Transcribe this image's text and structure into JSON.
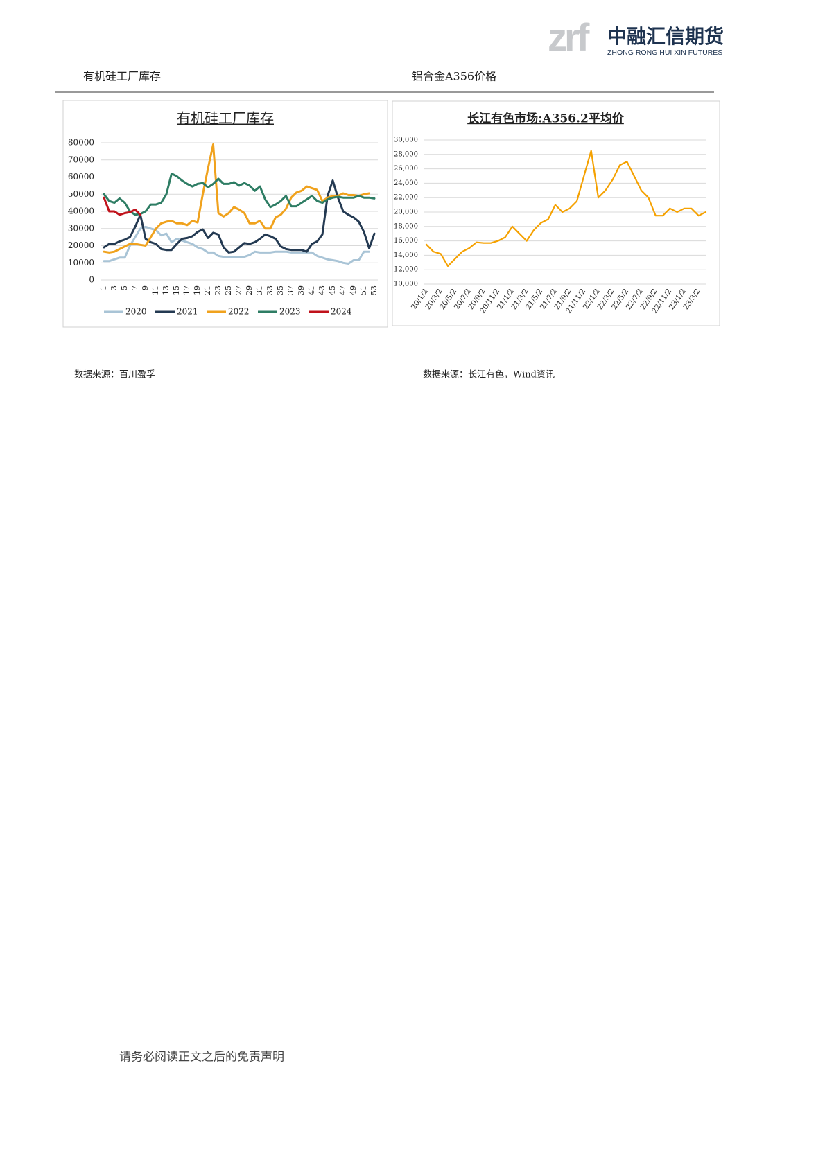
{
  "header": {
    "logo_mark": "zrf",
    "company": "中融汇信期货",
    "company_en": "ZHONG RONG HUI XIN FUTURES"
  },
  "sections": [
    {
      "title": "有机硅工厂库存",
      "source": "数据来源：百川盈孚"
    },
    {
      "title": "铝合金A356价格",
      "source": "数据来源：长江有色，Wind资讯"
    }
  ],
  "chart_data": [
    {
      "type": "line",
      "title": "有机硅工厂库存",
      "categories": [
        "1",
        null,
        "3",
        null,
        "5",
        null,
        "7",
        null,
        "9",
        null,
        "11",
        null,
        "13",
        null,
        "15",
        null,
        "17",
        null,
        "19",
        null,
        "21",
        null,
        "23",
        null,
        "25",
        null,
        "27",
        null,
        "29",
        null,
        "31",
        null,
        "33",
        null,
        "35",
        null,
        "37",
        null,
        "39",
        null,
        "41",
        null,
        "43",
        null,
        "45",
        null,
        "47",
        null,
        "49",
        null,
        "51",
        null,
        "53"
      ],
      "ylim": [
        0,
        80000
      ],
      "yticks": [
        0,
        10000,
        20000,
        30000,
        40000,
        50000,
        60000,
        70000,
        80000
      ],
      "grid": true,
      "legend": "bottom",
      "series": [
        {
          "name": "2020",
          "color": "#a9c4d6",
          "values": [
            11000,
            11000,
            12000,
            13000,
            13000,
            20000,
            25000,
            30000,
            31000,
            30000,
            29000,
            26000,
            27000,
            22000,
            24000,
            23000,
            22000,
            21000,
            19000,
            18000,
            16000,
            16000,
            14000,
            13500,
            13500,
            13500,
            13500,
            13500,
            14500,
            16500,
            16000,
            16000,
            16000,
            16500,
            16500,
            16500,
            16000,
            16000,
            16000,
            16000,
            16000,
            14000,
            13000,
            12000,
            11500,
            11000,
            10000,
            9500,
            11500,
            11500,
            16500,
            16500,
            null
          ]
        },
        {
          "name": "2021",
          "color": "#243a52",
          "values": [
            19000,
            21000,
            21000,
            22500,
            23500,
            25000,
            31000,
            38000,
            24000,
            22000,
            21000,
            18000,
            17500,
            17500,
            21000,
            24000,
            24500,
            25500,
            28000,
            29500,
            24500,
            27500,
            26500,
            19000,
            16000,
            16500,
            19000,
            21500,
            21000,
            22000,
            24000,
            26500,
            25500,
            24000,
            19500,
            18000,
            17500,
            17500,
            17500,
            16500,
            21000,
            22500,
            26500,
            49000,
            58000,
            48000,
            40000,
            38000,
            36500,
            34000,
            28000,
            18500,
            27000
          ]
        },
        {
          "name": "2022",
          "color": "#f0a21d",
          "values": [
            16500,
            16000,
            16500,
            18000,
            19500,
            21000,
            21000,
            20500,
            20000,
            25000,
            30000,
            33000,
            34000,
            34500,
            33000,
            33000,
            32000,
            34500,
            33500,
            50000,
            65000,
            79000,
            39000,
            37000,
            39000,
            42500,
            41000,
            39000,
            33000,
            33000,
            34500,
            30000,
            30000,
            36500,
            38000,
            41500,
            48000,
            51000,
            52000,
            54500,
            53500,
            52500,
            46000,
            48000,
            49000,
            49000,
            50500,
            49500,
            49500,
            49000,
            50000,
            50500,
            null
          ]
        },
        {
          "name": "2023",
          "color": "#2e7d64",
          "values": [
            50000,
            46000,
            45000,
            47500,
            45000,
            40000,
            38000,
            38500,
            40000,
            44000,
            44000,
            45000,
            50000,
            62000,
            60500,
            58000,
            56000,
            54500,
            56000,
            56500,
            54000,
            56000,
            59000,
            56000,
            56000,
            57000,
            55000,
            56500,
            55000,
            52000,
            54500,
            47000,
            42500,
            44000,
            46000,
            49000,
            43000,
            43000,
            45000,
            47000,
            49000,
            46000,
            45000,
            47000,
            48000,
            48500,
            48000,
            48000,
            48000,
            49000,
            48000,
            48000,
            47500
          ]
        },
        {
          "name": "2024",
          "color": "#c0121b",
          "values": [
            48000,
            40000,
            40000,
            38000,
            39000,
            39500,
            41000,
            38000,
            null,
            null,
            null,
            null,
            null,
            null,
            null,
            null,
            null,
            null,
            null,
            null,
            null,
            null,
            null,
            null,
            null,
            null,
            null,
            null,
            null,
            null,
            null,
            null,
            null,
            null,
            null,
            null,
            null,
            null,
            null,
            null,
            null,
            null,
            null,
            null,
            null,
            null,
            null,
            null,
            null,
            null,
            null,
            null,
            null
          ]
        }
      ]
    },
    {
      "type": "line",
      "title": "长江有色市场:A356.2平均价",
      "categories": [
        "20/1/2",
        null,
        "20/3/2",
        null,
        "20/5/2",
        null,
        "20/7/2",
        null,
        "20/9/2",
        null,
        "20/11/2",
        null,
        "21/1/2",
        null,
        "21/3/2",
        null,
        "21/5/2",
        null,
        "21/7/2",
        null,
        "21/9/2",
        null,
        "21/11/2",
        null,
        "22/1/2",
        null,
        "22/3/2",
        null,
        "22/5/2",
        null,
        "22/7/2",
        null,
        "22/9/2",
        null,
        "22/11/2",
        null,
        "23/1/2",
        null,
        "23/3/2",
        null
      ],
      "ylim": [
        10000,
        30000
      ],
      "yticks": [
        {
          "value": 10000,
          "label": "10,000"
        },
        {
          "value": 12000,
          "label": "12,000"
        },
        {
          "value": 14000,
          "label": "14,000"
        },
        {
          "value": 16000,
          "label": "16,000"
        },
        {
          "value": 18000,
          "label": "18,000"
        },
        {
          "value": 20000,
          "label": "20,000"
        },
        {
          "value": 22000,
          "label": "22,000"
        },
        {
          "value": 24000,
          "label": "24,000"
        },
        {
          "value": 26000,
          "label": "26,000"
        },
        {
          "value": 28000,
          "label": "28,000"
        },
        {
          "value": 30000,
          "label": "30,000"
        }
      ],
      "grid": true,
      "series": [
        {
          "color": "#f5a100",
          "values": [
            15500,
            14500,
            14200,
            12500,
            13500,
            14500,
            15000,
            15800,
            15700,
            15700,
            16000,
            16500,
            18000,
            17000,
            16000,
            17500,
            18500,
            19000,
            21000,
            20000,
            20500,
            21500,
            25000,
            28500,
            22000,
            23000,
            24500,
            26500,
            27000,
            25000,
            23000,
            22000,
            19500,
            19500,
            20500,
            20000,
            20500,
            20500,
            19500,
            20000
          ]
        }
      ]
    }
  ],
  "footer": "请务必阅读正文之后的免责声明"
}
